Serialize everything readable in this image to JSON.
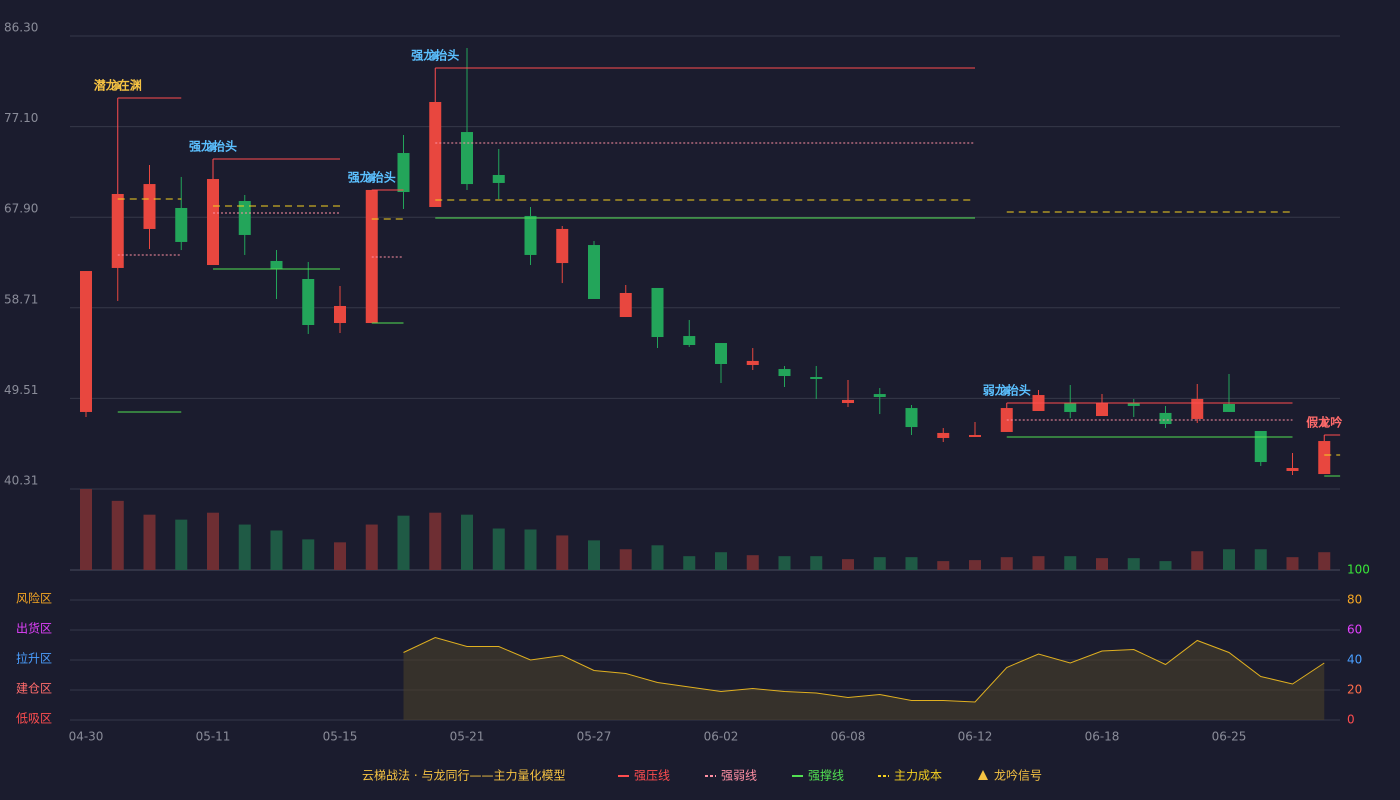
{
  "chart_data": [
    {
      "type": "candlestick",
      "categories": [
        "04-30",
        null,
        null,
        null,
        "05-11",
        null,
        null,
        null,
        "05-15",
        null,
        null,
        null,
        "05-21",
        null,
        null,
        null,
        "05-27",
        null,
        null,
        null,
        "06-02",
        null,
        null,
        null,
        "06-08",
        null,
        null,
        null,
        "06-12",
        null,
        null,
        null,
        "06-18",
        null,
        null,
        null,
        "06-25",
        null,
        null,
        null
      ],
      "open": [
        48.13,
        62.75,
        66.71,
        68.84,
        63.05,
        69.55,
        63.46,
        61.63,
        57.16,
        57.16,
        74.42,
        68.94,
        76.55,
        72.19,
        68.03,
        63.25,
        65.08,
        57.77,
        60.72,
        55.84,
        55.13,
        52.9,
        52.49,
        51.68,
        49.04,
        49.95,
        48.53,
        45.49,
        45.59,
        46.1,
        48.23,
        49.04,
        47.72,
        49.04,
        48.03,
        47.42,
        48.94,
        46.2,
        42.14,
        41.83
      ],
      "high": [
        62.44,
        70.26,
        73.2,
        71.99,
        71.78,
        70.16,
        64.57,
        63.36,
        60.92,
        70.67,
        76.25,
        79.6,
        85.08,
        74.83,
        68.94,
        67.01,
        65.49,
        61.02,
        60.72,
        57.47,
        55.13,
        54.62,
        52.8,
        52.8,
        51.38,
        50.56,
        48.84,
        46.5,
        47.11,
        48.53,
        50.36,
        50.87,
        49.95,
        49.45,
        48.74,
        50.97,
        51.99,
        46.2,
        43.96,
        45.18
      ],
      "low": [
        47.62,
        59.4,
        64.68,
        64.57,
        63.05,
        64.07,
        59.6,
        56.05,
        56.15,
        57.16,
        68.74,
        68.94,
        70.67,
        69.75,
        63.05,
        61.22,
        59.6,
        57.77,
        54.62,
        54.73,
        51.07,
        52.39,
        50.67,
        49.45,
        48.63,
        47.92,
        45.79,
        45.08,
        45.59,
        46.1,
        48.23,
        47.52,
        47.72,
        47.62,
        46.5,
        47.01,
        48.13,
        42.65,
        41.73,
        41.83
      ],
      "close": [
        62.44,
        70.26,
        71.27,
        65.39,
        71.78,
        66.1,
        62.65,
        56.96,
        58.89,
        70.67,
        70.46,
        79.6,
        71.27,
        71.38,
        64.07,
        66.71,
        59.6,
        60.21,
        55.74,
        54.93,
        53.0,
        53.31,
        51.78,
        51.48,
        49.35,
        49.65,
        46.6,
        46.0,
        45.79,
        48.53,
        49.85,
        48.13,
        49.04,
        48.74,
        46.91,
        49.45,
        48.13,
        43.05,
        42.44,
        45.18
      ],
      "up_color": "#e8473f",
      "down_color": "#23a55a",
      "ylim": [
        40.31,
        86.3
      ],
      "yticks": [
        40.31,
        49.51,
        58.71,
        {
          "value": 67.9,
          "label": "67.90"
        },
        {
          "value": 77.1,
          "label": "77.10"
        },
        {
          "value": 86.3,
          "label": "86.30"
        }
      ],
      "grid": true,
      "levels": [
        {
          "legend": 0,
          "value": 80.0,
          "start": 1,
          "end": 3
        },
        {
          "legend": 1,
          "value": 64.07,
          "start": 1,
          "end": 3
        },
        {
          "legend": 3,
          "value": 69.75,
          "start": 1,
          "end": 3
        },
        {
          "legend": 2,
          "value": 48.13,
          "start": 1,
          "end": 3
        },
        {
          "legend": 0,
          "value": 73.81,
          "start": 4,
          "end": 8
        },
        {
          "legend": 1,
          "value": 68.33,
          "start": 4,
          "end": 8
        },
        {
          "legend": 3,
          "value": 69.04,
          "start": 4,
          "end": 8
        },
        {
          "legend": 2,
          "value": 62.65,
          "start": 4,
          "end": 8
        },
        {
          "legend": 0,
          "value": 70.67,
          "start": 9,
          "end": 10
        },
        {
          "legend": 1,
          "value": 63.86,
          "start": 9,
          "end": 10
        },
        {
          "legend": 3,
          "value": 67.72,
          "start": 9,
          "end": 10
        },
        {
          "legend": 2,
          "value": 57.16,
          "start": 9,
          "end": 10
        },
        {
          "legend": 0,
          "value": 83.05,
          "start": 11,
          "end": 28
        },
        {
          "legend": 1,
          "value": 75.44,
          "start": 11,
          "end": 28
        },
        {
          "legend": 3,
          "value": 69.65,
          "start": 11,
          "end": 28
        },
        {
          "legend": 2,
          "value": 67.82,
          "start": 11,
          "end": 28
        },
        {
          "legend": 0,
          "value": 49.04,
          "start": 29,
          "end": 38
        },
        {
          "legend": 1,
          "value": 47.32,
          "start": 29,
          "end": 38
        },
        {
          "legend": 3,
          "value": 68.43,
          "start": 29,
          "end": 38
        },
        {
          "legend": 2,
          "value": 45.59,
          "start": 29,
          "end": 38
        },
        {
          "legend": 0,
          "value": 45.79,
          "start": 39,
          "end": 39
        },
        {
          "legend": 3,
          "value": 43.76,
          "start": 39,
          "end": 39
        },
        {
          "legend": 2,
          "value": 41.63,
          "start": 39,
          "end": 39
        }
      ],
      "signals": [
        {
          "index": 1,
          "label": "潜龙在渊",
          "color": "#f5c242"
        },
        {
          "index": 4,
          "label": "强龙抬头",
          "color": "#5bc0ff"
        },
        {
          "index": 9,
          "label": "强龙抬头",
          "color": "#5bc0ff"
        },
        {
          "index": 11,
          "label": "强龙抬头",
          "color": "#5bc0ff"
        },
        {
          "index": 29,
          "label": "弱龙抬头",
          "color": "#5bc0ff"
        },
        {
          "index": 39,
          "label": "假龙吟",
          "color": "#ff6b6b"
        }
      ]
    },
    {
      "type": "bar",
      "values": [
        82,
        70,
        56,
        51,
        58,
        46,
        40,
        31,
        28,
        46,
        55,
        58,
        56,
        42,
        41,
        35,
        30,
        21,
        25,
        14,
        18,
        15,
        14,
        14,
        11,
        13,
        13,
        9,
        10,
        13,
        14,
        14,
        12,
        12,
        9,
        19,
        21,
        21,
        13,
        18
      ],
      "up_color": "#6e2e33",
      "down_color": "#1f5a45"
    },
    {
      "type": "line",
      "values": [
        null,
        null,
        null,
        null,
        null,
        null,
        null,
        null,
        null,
        null,
        45,
        55,
        49,
        49,
        40,
        43,
        33,
        31,
        25,
        22,
        19,
        21,
        19,
        18,
        15,
        17,
        13,
        13,
        12,
        35,
        44,
        38,
        46,
        47,
        37,
        53,
        45,
        29,
        24,
        38
      ],
      "color": "#e0b020",
      "ylim": [
        0,
        100
      ],
      "yticks": [
        0,
        20,
        40,
        60,
        80,
        100
      ],
      "ytick_colors": [
        "#ff4d4f",
        "#ff6b4a",
        "#4a9eff",
        "#e040fb",
        "#f5a623",
        "#39e639"
      ],
      "zones": [
        {
          "value": 80,
          "label": "风险区",
          "color": "#f5a623"
        },
        {
          "value": 60,
          "label": "出货区",
          "color": "#e040fb"
        },
        {
          "value": 40,
          "label": "拉升区",
          "color": "#4a9eff"
        },
        {
          "value": 20,
          "label": "建仓区",
          "color": "#ff6b6b"
        },
        {
          "value": 0,
          "label": "低吸区",
          "color": "#ff4d4f"
        }
      ]
    }
  ],
  "legend": {
    "title": "云梯战法 · 与龙同行——主力量化模型",
    "title_color": "#f5c242",
    "items": [
      {
        "name": "强压线",
        "color": "#ff4d4f",
        "dash": "none"
      },
      {
        "name": "强弱线",
        "color": "#ff8fa3",
        "dash": "2,2"
      },
      {
        "name": "强撑线",
        "color": "#52e052",
        "dash": "none"
      },
      {
        "name": "主力成本",
        "color": "#f5d020",
        "dash": "7,5"
      },
      {
        "name": "龙吟信号",
        "color": "#f5c242",
        "marker": "triangle"
      }
    ]
  }
}
